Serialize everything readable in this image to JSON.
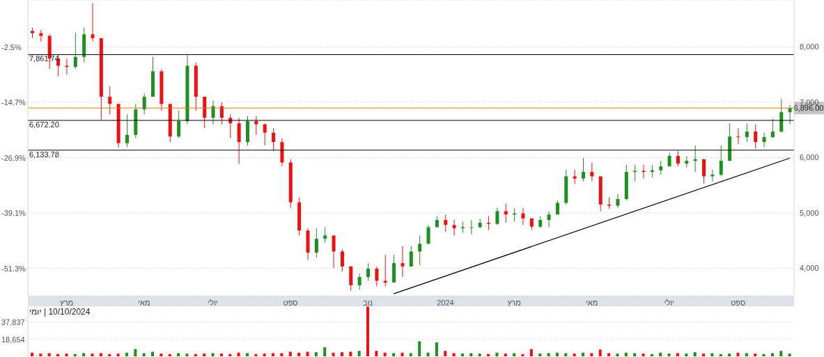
{
  "chart_data": [
    {
      "type": "candlestick",
      "categories": [
        null,
        null,
        null,
        null,
        "מרץ",
        null,
        null,
        null,
        null,
        null,
        null,
        null,
        null,
        "מאי",
        null,
        null,
        null,
        null,
        null,
        null,
        null,
        "יולי",
        null,
        null,
        null,
        null,
        null,
        null,
        null,
        null,
        "ספט",
        null,
        null,
        null,
        null,
        null,
        null,
        null,
        null,
        "נוב",
        null,
        null,
        null,
        null,
        null,
        null,
        null,
        null,
        "2024",
        null,
        null,
        null,
        null,
        null,
        null,
        null,
        "מרץ",
        null,
        null,
        null,
        null,
        null,
        null,
        null,
        null,
        "מאי",
        null,
        null,
        null,
        null,
        null,
        null,
        null,
        null,
        "יולי",
        null,
        null,
        null,
        null,
        null,
        null,
        null,
        "ספט",
        null,
        null,
        null,
        null,
        null,
        null
      ],
      "ohlc": [
        [
          8290,
          8350,
          8160,
          8250
        ],
        [
          8250,
          8310,
          8100,
          8200
        ],
        [
          8200,
          8230,
          7600,
          7790
        ],
        [
          7790,
          7870,
          7470,
          7660
        ],
        [
          7660,
          7790,
          7500,
          7640
        ],
        [
          7640,
          8260,
          7600,
          7820
        ],
        [
          7820,
          8350,
          7720,
          8230
        ],
        [
          8230,
          8790,
          8100,
          8160
        ],
        [
          8160,
          8160,
          6680,
          7100
        ],
        [
          7100,
          7290,
          6780,
          6970
        ],
        [
          6970,
          6970,
          6180,
          6260
        ],
        [
          6260,
          6780,
          6190,
          6410
        ],
        [
          6410,
          6970,
          6350,
          6870
        ],
        [
          6870,
          7160,
          6780,
          7100
        ],
        [
          7100,
          7820,
          7100,
          7560
        ],
        [
          7560,
          7600,
          6850,
          6970
        ],
        [
          6970,
          6970,
          6280,
          6380
        ],
        [
          6380,
          6850,
          6350,
          6660
        ],
        [
          6660,
          7870,
          6600,
          7660
        ],
        [
          7660,
          7720,
          6850,
          7100
        ],
        [
          7100,
          7100,
          6530,
          6720
        ],
        [
          6720,
          7030,
          6600,
          6930
        ],
        [
          6930,
          7000,
          6600,
          6720
        ],
        [
          6720,
          6780,
          6350,
          6620
        ],
        [
          6620,
          6720,
          5880,
          6280
        ],
        [
          6280,
          6750,
          6220,
          6660
        ],
        [
          6660,
          6750,
          6410,
          6600
        ],
        [
          6600,
          6620,
          6220,
          6450
        ],
        [
          6450,
          6530,
          6120,
          6280
        ],
        [
          6280,
          6350,
          5840,
          5910
        ],
        [
          5910,
          5970,
          5090,
          5190
        ],
        [
          5190,
          5280,
          4590,
          4680
        ],
        [
          4680,
          4720,
          4150,
          4280
        ],
        [
          4280,
          4720,
          4190,
          4530
        ],
        [
          4530,
          4740,
          4460,
          4590
        ],
        [
          4590,
          4590,
          4000,
          4300
        ],
        [
          4300,
          4340,
          3940,
          4030
        ],
        [
          4030,
          4030,
          3590,
          3690
        ],
        [
          3690,
          3900,
          3610,
          3840
        ],
        [
          3840,
          4090,
          3770,
          3990
        ],
        [
          3990,
          4030,
          3670,
          3770
        ],
        [
          3770,
          4240,
          3670,
          3740
        ],
        [
          3740,
          4240,
          3740,
          4090
        ],
        [
          4090,
          4400,
          3840,
          4030
        ],
        [
          4030,
          4400,
          4030,
          4300
        ],
        [
          4300,
          4590,
          4050,
          4440
        ],
        [
          4440,
          4780,
          4440,
          4740
        ],
        [
          4740,
          4940,
          4740,
          4870
        ],
        [
          4870,
          4970,
          4650,
          4780
        ],
        [
          4780,
          4870,
          4590,
          4720
        ],
        [
          4720,
          4840,
          4640,
          4740
        ],
        [
          4740,
          4870,
          4610,
          4740
        ],
        [
          4740,
          4900,
          4720,
          4820
        ],
        [
          4820,
          4940,
          4690,
          4800
        ],
        [
          4800,
          5090,
          4780,
          5030
        ],
        [
          5030,
          5170,
          4820,
          4970
        ],
        [
          4970,
          5090,
          4840,
          4990
        ],
        [
          4990,
          5090,
          4780,
          4900
        ],
        [
          4900,
          4900,
          4690,
          4750
        ],
        [
          4750,
          4940,
          4720,
          4870
        ],
        [
          4870,
          5030,
          4740,
          4970
        ],
        [
          4970,
          5220,
          4970,
          5180
        ],
        [
          5180,
          5780,
          5150,
          5660
        ],
        [
          5660,
          5780,
          5520,
          5620
        ],
        [
          5620,
          5990,
          5570,
          5740
        ],
        [
          5740,
          5910,
          5570,
          5660
        ],
        [
          5660,
          5660,
          5030,
          5150
        ],
        [
          5150,
          5280,
          5070,
          5130
        ],
        [
          5130,
          5340,
          5090,
          5250
        ],
        [
          5250,
          5870,
          5220,
          5740
        ],
        [
          5740,
          5870,
          5570,
          5760
        ],
        [
          5760,
          5870,
          5620,
          5740
        ],
        [
          5740,
          5870,
          5640,
          5770
        ],
        [
          5770,
          5940,
          5690,
          5840
        ],
        [
          5840,
          6090,
          5840,
          6030
        ],
        [
          6030,
          6120,
          5840,
          5890
        ],
        [
          5890,
          6030,
          5820,
          5940
        ],
        [
          5940,
          6220,
          5740,
          5970
        ],
        [
          5970,
          5970,
          5530,
          5660
        ],
        [
          5660,
          5780,
          5570,
          5690
        ],
        [
          5690,
          6220,
          5660,
          5940
        ],
        [
          5940,
          6620,
          5940,
          6380
        ],
        [
          6380,
          6530,
          6240,
          6370
        ],
        [
          6370,
          6620,
          6280,
          6470
        ],
        [
          6470,
          6600,
          6160,
          6280
        ],
        [
          6280,
          6450,
          6190,
          6370
        ],
        [
          6370,
          6700,
          6350,
          6470
        ],
        [
          6470,
          7060,
          6450,
          6820
        ],
        [
          6820,
          6950,
          6600,
          6896
        ]
      ],
      "colors": [
        "#f01010",
        "#f01010",
        "#f01010",
        "#f01010",
        "#f01010",
        "#1f8f1f",
        "#1f8f1f",
        "#f01010",
        "#f01010",
        "#f01010",
        "#f01010",
        "#1f8f1f",
        "#1f8f1f",
        "#1f8f1f",
        "#1f8f1f",
        "#f01010",
        "#f01010",
        "#1f8f1f",
        "#1f8f1f",
        "#f01010",
        "#f01010",
        "#1f8f1f",
        "#f01010",
        "#f01010",
        "#f01010",
        "#1f8f1f",
        "#f01010",
        "#f01010",
        "#f01010",
        "#f01010",
        "#f01010",
        "#f01010",
        "#f01010",
        "#1f8f1f",
        "#1f8f1f",
        "#f01010",
        "#f01010",
        "#f01010",
        "#1f8f1f",
        "#1f8f1f",
        "#f01010",
        "#f01010",
        "#1f8f1f",
        "#f01010",
        "#1f8f1f",
        "#1f8f1f",
        "#1f8f1f",
        "#1f8f1f",
        "#f01010",
        "#f01010",
        "#1f8f1f",
        "#1f8f1f",
        "#1f8f1f",
        "#f01010",
        "#1f8f1f",
        "#f01010",
        "#1f8f1f",
        "#f01010",
        "#f01010",
        "#1f8f1f",
        "#1f8f1f",
        "#1f8f1f",
        "#1f8f1f",
        "#f01010",
        "#1f8f1f",
        "#f01010",
        "#f01010",
        "#f01010",
        "#1f8f1f",
        "#1f8f1f",
        "#1f8f1f",
        "#f01010",
        "#1f8f1f",
        "#1f8f1f",
        "#1f8f1f",
        "#f01010",
        "#1f8f1f",
        "#1f8f1f",
        "#f01010",
        "#1f8f1f",
        "#1f8f1f",
        "#1f8f1f",
        "#f01010",
        "#1f8f1f",
        "#f01010",
        "#1f8f1f",
        "#1f8f1f",
        "#1f8f1f",
        "#1f8f1f"
      ],
      "series": [
        {
          "type": "line",
          "color": "#000000",
          "values": [
            null,
            null,
            null,
            null,
            null,
            null,
            null,
            null,
            null,
            null,
            null,
            null,
            null,
            null,
            null,
            null,
            null,
            null,
            null,
            null,
            null,
            null,
            null,
            null,
            null,
            null,
            null,
            null,
            null,
            null,
            null,
            null,
            null,
            null,
            null,
            null,
            null,
            null,
            null,
            null,
            null,
            null,
            3536,
            null,
            null,
            null,
            null,
            null,
            null,
            null,
            null,
            null,
            null,
            null,
            null,
            null,
            null,
            null,
            null,
            null,
            null,
            null,
            null,
            null,
            null,
            null,
            null,
            null,
            null,
            null,
            null,
            null,
            null,
            null,
            null,
            null,
            null,
            null,
            null,
            null,
            null,
            null,
            null,
            null,
            null,
            null,
            null,
            null,
            5990
          ]
        }
      ],
      "ylim": [
        3500,
        8850
      ],
      "yticks": [
        {
          "value": 4000,
          "label": "4,000"
        },
        {
          "value": 5000,
          "label": "5,000"
        },
        {
          "value": 6000,
          "label": "6,000"
        },
        {
          "value": 7000,
          "label": "7,000"
        },
        {
          "value": 8000,
          "label": "8,000"
        }
      ],
      "y2lim": [
        -57.34,
        7.86
      ],
      "y2ticks": [
        {
          "value": -51.3,
          "label": "-51.3%"
        },
        {
          "value": -39.1,
          "label": "-39.1%"
        },
        {
          "value": -26.9,
          "label": "-26.9%"
        },
        {
          "value": -14.7,
          "label": "-14.7%"
        },
        {
          "value": -2.5,
          "label": "-2.5%"
        }
      ],
      "grid": "y",
      "ref_lines": [
        {
          "axis": "y",
          "value": 7861.74,
          "label": "7,861.74",
          "color": "#000000"
        },
        {
          "axis": "y",
          "value": 6672.2,
          "label": "6,672.20",
          "color": "#000000"
        },
        {
          "axis": "y",
          "value": 6133.78,
          "label": "6,133.78",
          "color": "#000000"
        },
        {
          "axis": "y",
          "value": 6896,
          "label": "6,896.00",
          "color": "#e07800"
        }
      ]
    },
    {
      "type": "bar",
      "categories": [
        null,
        null,
        null,
        null,
        null,
        null,
        null,
        null,
        null,
        null,
        null,
        null,
        null,
        null,
        null,
        null,
        null,
        null,
        null,
        null,
        null,
        null,
        null,
        null,
        null,
        null,
        null,
        null,
        null,
        null,
        null,
        null,
        null,
        null,
        null,
        null,
        null,
        null,
        null,
        null,
        null,
        null,
        null,
        null,
        null,
        null,
        null,
        null,
        null,
        null,
        null,
        null,
        null,
        null,
        null,
        null,
        null,
        null,
        null,
        null,
        null,
        null,
        null,
        null,
        null,
        null,
        null,
        null,
        null,
        null,
        null,
        null,
        null,
        null,
        null,
        null,
        null,
        null,
        null,
        null,
        null,
        null,
        null,
        null,
        null,
        null,
        null,
        null,
        null
      ],
      "values": [
        4000,
        3000,
        3500,
        2500,
        3000,
        2500,
        3500,
        3000,
        3500,
        2500,
        3000,
        4000,
        8000,
        3500,
        5000,
        3000,
        2500,
        3500,
        3000,
        2500,
        3000,
        3500,
        3000,
        2500,
        4000,
        3500,
        2500,
        3000,
        3500,
        3500,
        5000,
        4000,
        5000,
        4500,
        10000,
        4000,
        4500,
        5000,
        6000,
        55000,
        6000,
        4000,
        3500,
        4000,
        3500,
        16600,
        4000,
        15400,
        6000,
        3500,
        3000,
        3500,
        3000,
        2500,
        4000,
        3000,
        3500,
        2500,
        8000,
        3000,
        3500,
        4000,
        3500,
        3000,
        4000,
        3500,
        7500,
        3500,
        3000,
        4000,
        3500,
        3000,
        2500,
        4000,
        3000,
        3500,
        3000,
        4500,
        3000,
        3500,
        2500,
        3000,
        4000,
        3500,
        3000,
        2500,
        3500,
        6000,
        3000
      ],
      "colors": [
        "#f01010",
        "#f01010",
        "#f01010",
        "#f01010",
        "#f01010",
        "#1f8f1f",
        "#1f8f1f",
        "#f01010",
        "#f01010",
        "#f01010",
        "#f01010",
        "#1f8f1f",
        "#1f8f1f",
        "#1f8f1f",
        "#1f8f1f",
        "#f01010",
        "#f01010",
        "#1f8f1f",
        "#1f8f1f",
        "#f01010",
        "#f01010",
        "#1f8f1f",
        "#f01010",
        "#f01010",
        "#f01010",
        "#1f8f1f",
        "#f01010",
        "#f01010",
        "#f01010",
        "#f01010",
        "#f01010",
        "#f01010",
        "#f01010",
        "#1f8f1f",
        "#1f8f1f",
        "#f01010",
        "#f01010",
        "#f01010",
        "#1f8f1f",
        "#f01010",
        "#f01010",
        "#f01010",
        "#1f8f1f",
        "#f01010",
        "#1f8f1f",
        "#1f8f1f",
        "#1f8f1f",
        "#1f8f1f",
        "#f01010",
        "#f01010",
        "#1f8f1f",
        "#1f8f1f",
        "#1f8f1f",
        "#f01010",
        "#1f8f1f",
        "#f01010",
        "#1f8f1f",
        "#f01010",
        "#f01010",
        "#1f8f1f",
        "#1f8f1f",
        "#1f8f1f",
        "#1f8f1f",
        "#f01010",
        "#1f8f1f",
        "#f01010",
        "#f01010",
        "#f01010",
        "#1f8f1f",
        "#1f8f1f",
        "#1f8f1f",
        "#f01010",
        "#1f8f1f",
        "#1f8f1f",
        "#1f8f1f",
        "#f01010",
        "#1f8f1f",
        "#1f8f1f",
        "#f01010",
        "#1f8f1f",
        "#1f8f1f",
        "#1f8f1f",
        "#f01010",
        "#1f8f1f",
        "#f01010",
        "#1f8f1f",
        "#1f8f1f",
        "#1f8f1f",
        "#1f8f1f"
      ],
      "ylim": [
        0,
        55400
      ],
      "yticks": [
        {
          "value": 18654,
          "label": "18,654"
        },
        {
          "value": 37837,
          "label": "37,837"
        }
      ],
      "grid": "y",
      "tick_labels": "y",
      "annotations": [
        "10/10/2024 | יומי"
      ]
    }
  ]
}
